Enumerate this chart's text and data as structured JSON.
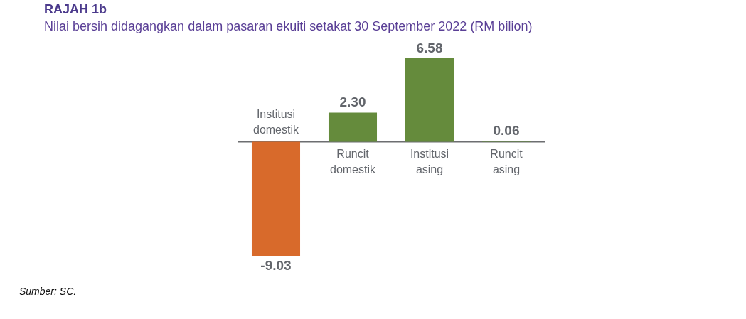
{
  "chart_data": {
    "type": "bar",
    "title": "RAJAH 1b",
    "subtitle": "Nilai bersih didagangkan dalam pasaran ekuiti setakat 30 September 2022 (RM bilion)",
    "categories": [
      "Institusi domestik",
      "Runcit domestik",
      "Institusi asing",
      "Runcit asing"
    ],
    "values": [
      -9.03,
      2.3,
      6.58,
      0.06
    ],
    "colors": [
      "#d86a2b",
      "#658b3c",
      "#658b3c",
      "#658b3c"
    ],
    "value_labels": [
      "-9.03",
      "2.30",
      "6.58",
      "0.06"
    ],
    "annotations": [
      "Sumber: SC."
    ]
  }
}
